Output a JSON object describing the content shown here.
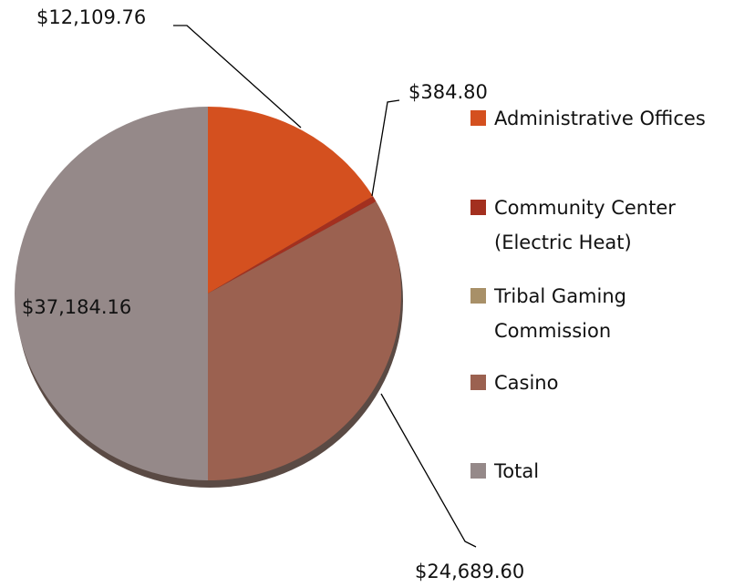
{
  "chart_data": {
    "type": "pie",
    "categories": [
      "Administrative Offices",
      "Community Center (Electric Heat)",
      "Tribal Gaming Commission",
      "Casino",
      "Total"
    ],
    "values": [
      12109.76,
      384.8,
      0,
      24689.6,
      37184.16
    ],
    "value_labels": [
      "$12,109.76",
      "$384.80",
      null,
      "$24,689.60",
      "$37,184.16"
    ],
    "colors": [
      "#d4501f",
      "#a3301f",
      "#a89068",
      "#9b6150",
      "#958989"
    ]
  }
}
